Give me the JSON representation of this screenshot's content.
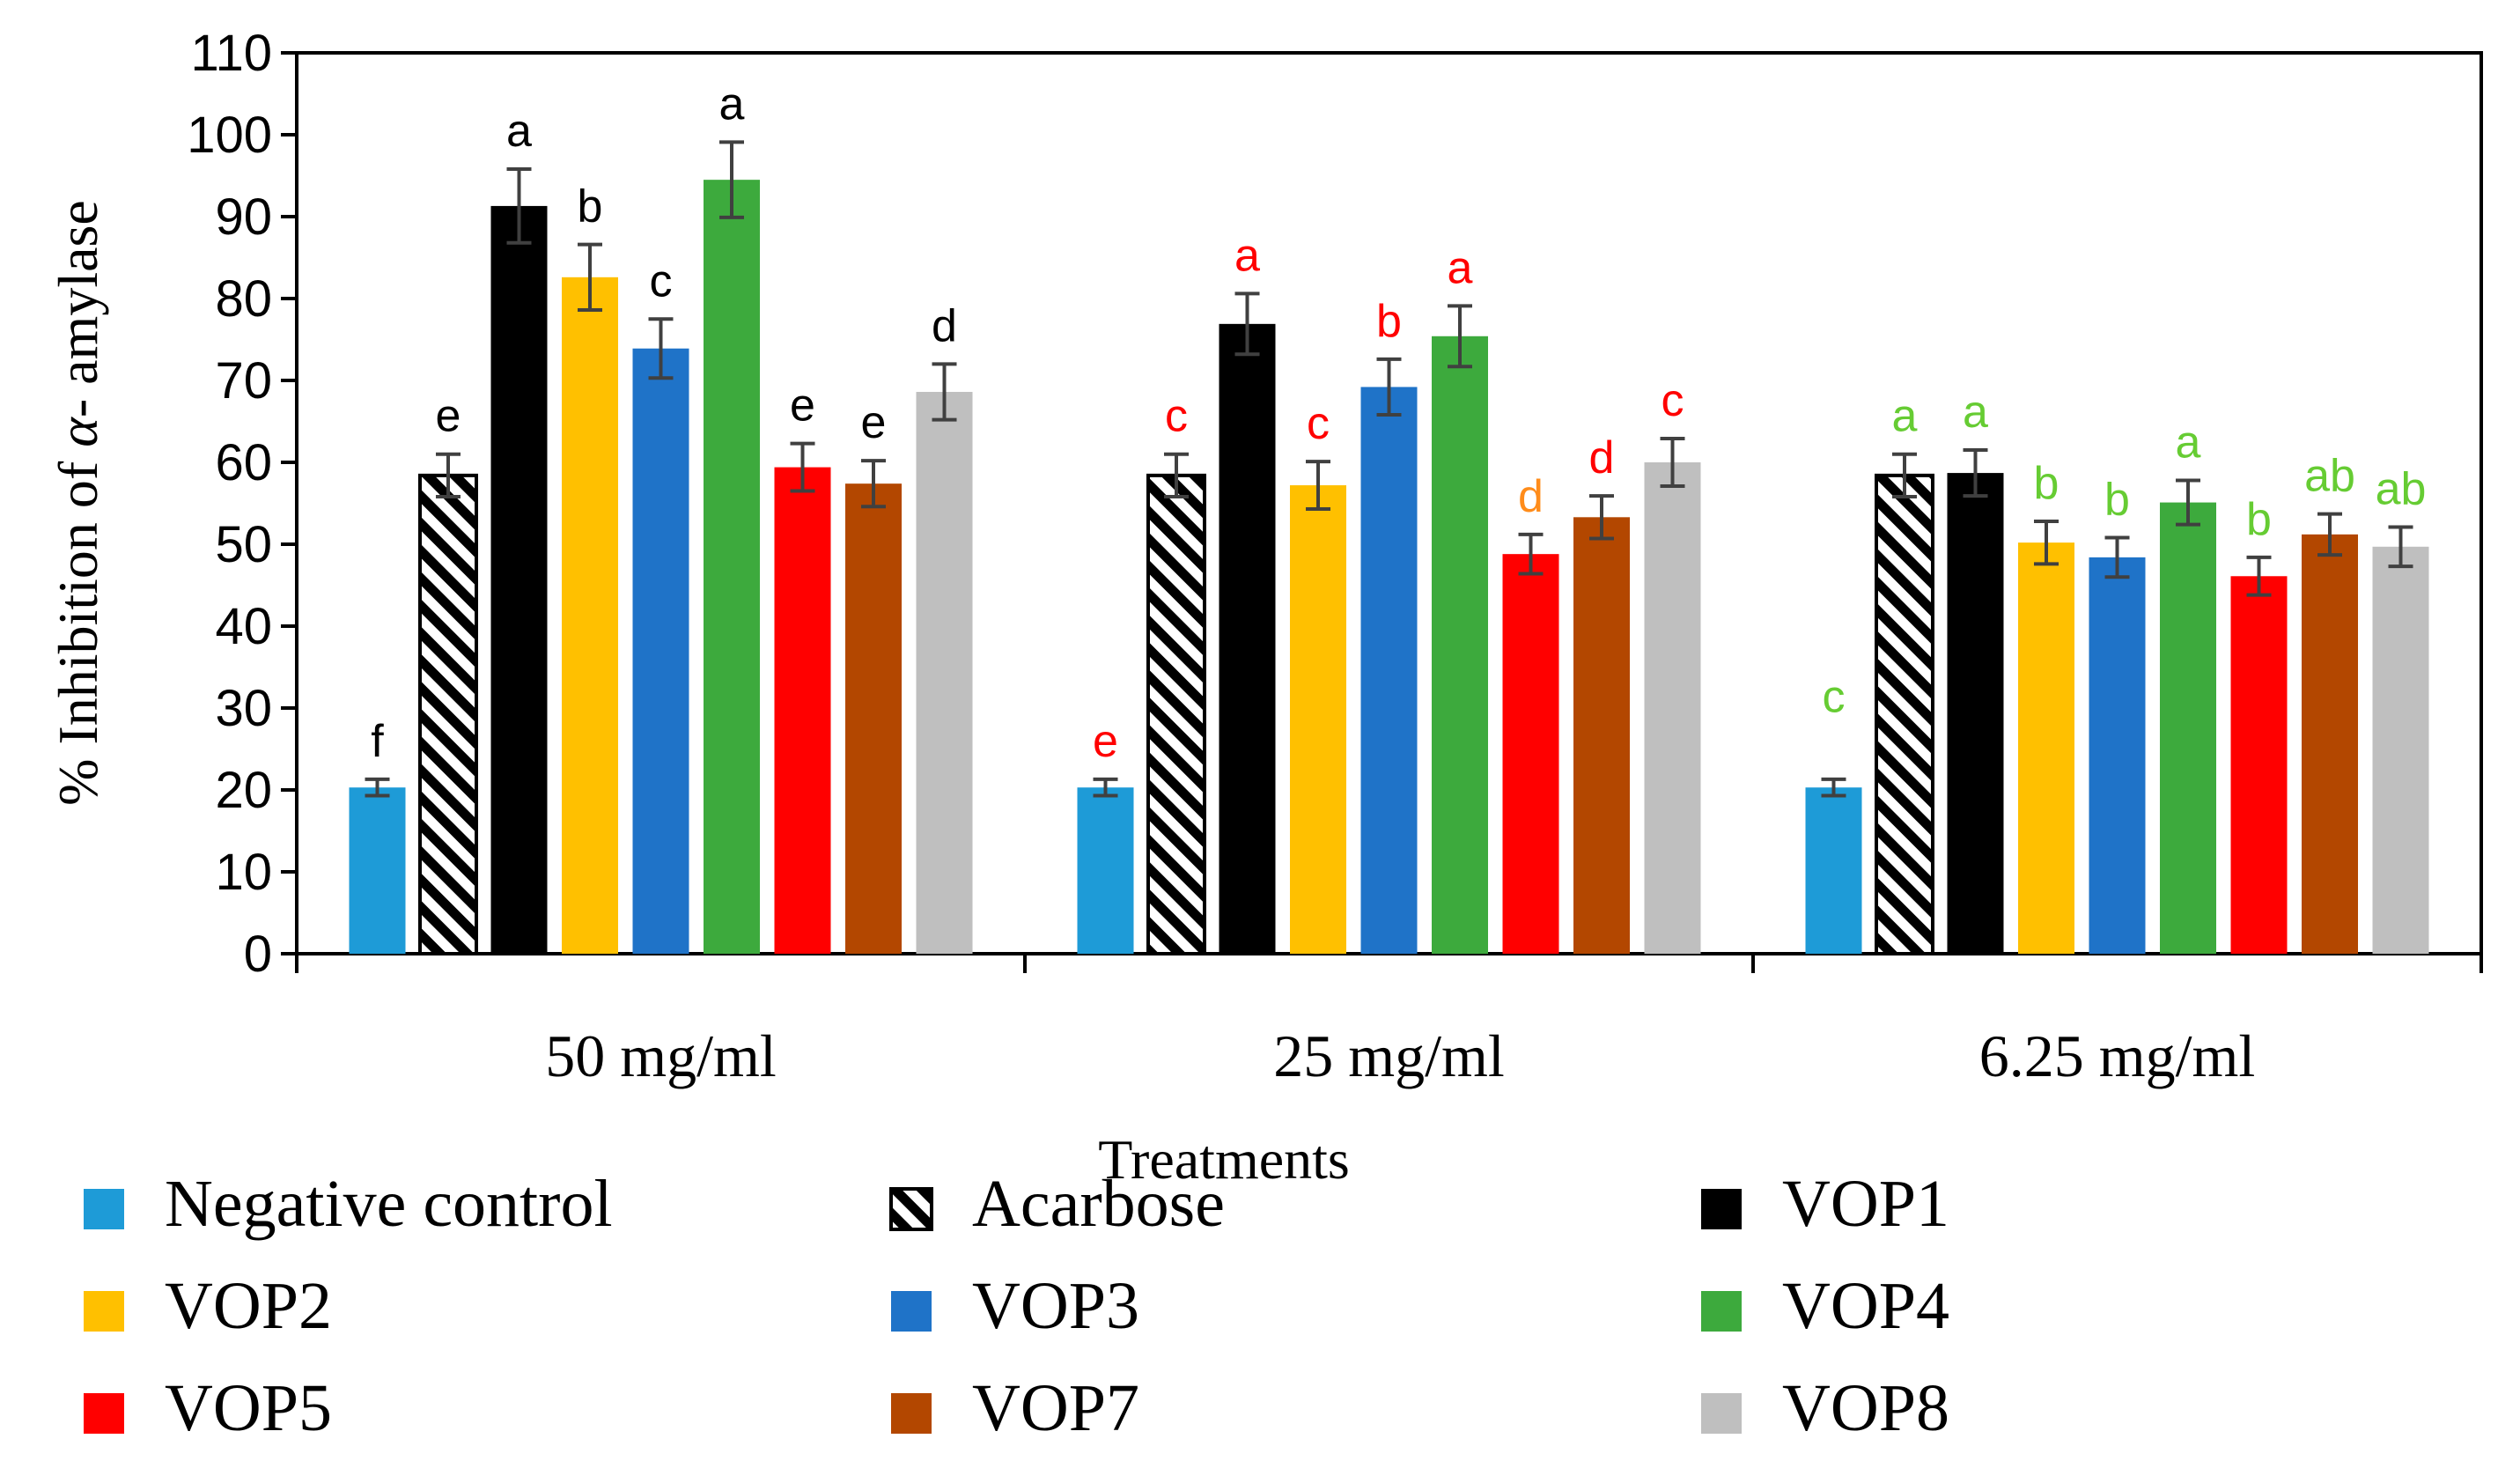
{
  "chart_data": {
    "type": "bar",
    "title": "",
    "xlabel": "Treatments",
    "ylabel_prefix": "% Inhibition of ",
    "ylabel_symbol": "α",
    "ylabel_suffix": "- amylase",
    "ylim": [
      0,
      110
    ],
    "yticks": [
      0,
      10,
      20,
      30,
      40,
      50,
      60,
      70,
      80,
      90,
      100,
      110
    ],
    "categories": [
      "50 mg/ml",
      "25 mg/ml",
      "6.25 mg/ml"
    ],
    "series": [
      {
        "name": "Negative control",
        "color": "#1E9BD7",
        "pattern": false,
        "values": [
          20.3,
          20.3,
          20.3
        ],
        "errors": [
          1.0,
          1.0,
          1.0
        ],
        "letters": [
          "f",
          "e",
          "c"
        ]
      },
      {
        "name": "Acarbose",
        "color": "#000000",
        "pattern": true,
        "values": [
          58.4,
          58.4,
          58.4
        ],
        "errors": [
          2.6,
          2.6,
          2.6
        ],
        "letters": [
          "e",
          "c",
          "a"
        ]
      },
      {
        "name": "VOP1",
        "color": "#000000",
        "pattern": false,
        "values": [
          91.3,
          76.9,
          58.7
        ],
        "errors": [
          4.5,
          3.7,
          2.8
        ],
        "letters": [
          "a",
          "a",
          "a"
        ]
      },
      {
        "name": "VOP2",
        "color": "#FFC000",
        "pattern": false,
        "values": [
          82.6,
          57.2,
          50.2
        ],
        "errors": [
          4.0,
          2.9,
          2.6
        ],
        "letters": [
          "b",
          "c",
          "b"
        ]
      },
      {
        "name": "VOP3",
        "color": "#1F73C8",
        "pattern": false,
        "values": [
          73.9,
          69.2,
          48.4
        ],
        "errors": [
          3.6,
          3.4,
          2.4
        ],
        "letters": [
          "c",
          "b",
          "b"
        ]
      },
      {
        "name": "VOP4",
        "color": "#3DAA3D",
        "pattern": false,
        "values": [
          94.5,
          75.4,
          55.1
        ],
        "errors": [
          4.6,
          3.7,
          2.7
        ],
        "letters": [
          "a",
          "a",
          "a"
        ]
      },
      {
        "name": "VOP5",
        "color": "#FF0000",
        "pattern": false,
        "values": [
          59.4,
          48.8,
          46.1
        ],
        "errors": [
          2.9,
          2.4,
          2.3
        ],
        "letters": [
          "e",
          "d",
          "b"
        ]
      },
      {
        "name": "VOP7",
        "color": "#B34700",
        "pattern": false,
        "values": [
          57.4,
          53.3,
          51.2
        ],
        "errors": [
          2.8,
          2.6,
          2.5
        ],
        "letters": [
          "e",
          "d",
          "ab"
        ]
      },
      {
        "name": "VOP8",
        "color": "#BFBFBF",
        "pattern": false,
        "values": [
          68.6,
          60.0,
          49.7
        ],
        "errors": [
          3.4,
          2.9,
          2.4
        ],
        "letters": [
          "d",
          "c",
          "ab"
        ]
      }
    ],
    "letter_colors": [
      [
        "#000000",
        "#000000",
        "#000000",
        "#000000",
        "#000000",
        "#000000",
        "#000000",
        "#000000",
        "#000000"
      ],
      [
        "#FF0000",
        "#FF0000",
        "#FF0000",
        "#FF0000",
        "#FF0000",
        "#FF0000",
        "#FF0000",
        "#FF0000",
        "#FF0000"
      ],
      [
        "#66CC33",
        "#66CC33",
        "#66CC33",
        "#66CC33",
        "#66CC33",
        "#66CC33",
        "#66CC33",
        "#66CC33",
        "#66CC33"
      ]
    ],
    "letter_color_overrides": [
      {
        "category": 1,
        "series": 6,
        "color": "#FF8C1A"
      }
    ],
    "grid": false,
    "legend_position": "bottom",
    "error_bar_color": "#404040"
  }
}
